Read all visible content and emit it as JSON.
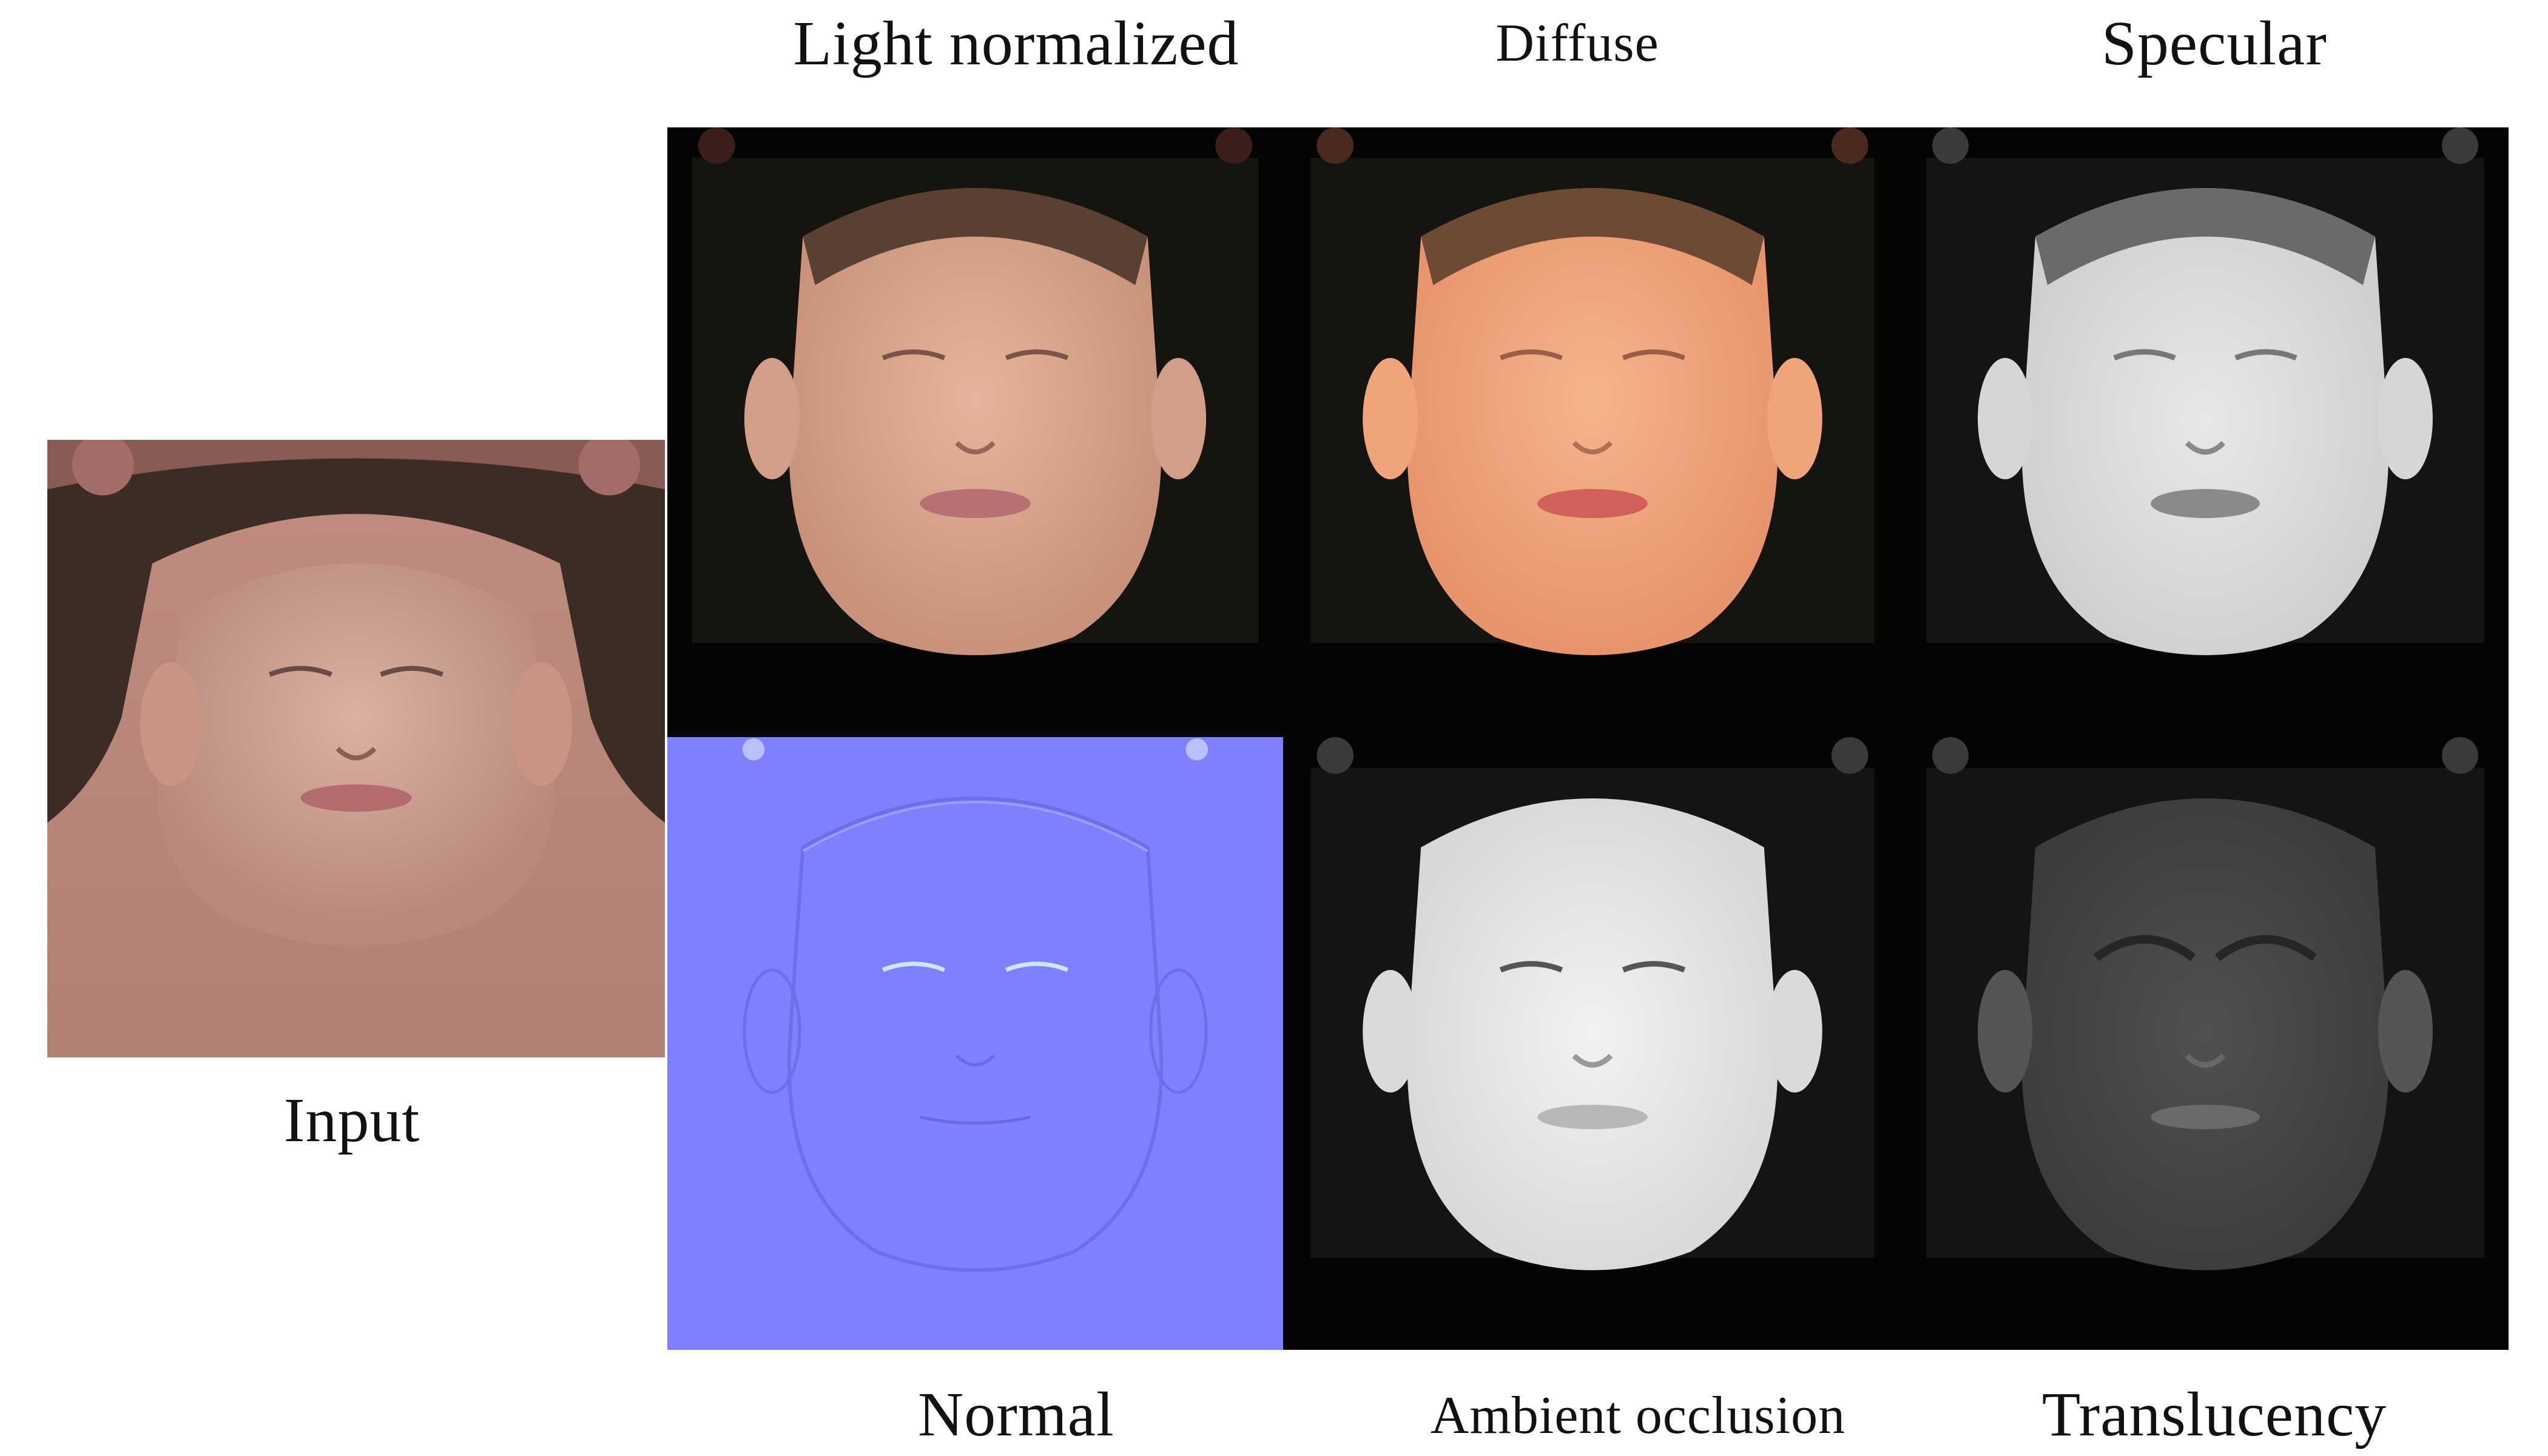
{
  "labels": {
    "input": "Input",
    "light_normalized": "Light normalized",
    "diffuse": "Diffuse",
    "specular": "Specular",
    "normal": "Normal",
    "ambient_occlusion": "Ambient occlusion",
    "translucency": "Translucency"
  },
  "colors": {
    "background": "#ffffff",
    "panel_dark": "#050403",
    "normal_map_blue": "#8080ff",
    "skin_input": "#c89a8c",
    "skin_light_normalized": "#d9a58c",
    "skin_diffuse": "#f0a57c",
    "hair": "#3b2c25"
  },
  "tiles": [
    {
      "name": "input",
      "kind": "uv-texture"
    },
    {
      "name": "light-normalized",
      "kind": "uv-texture"
    },
    {
      "name": "diffuse",
      "kind": "uv-texture"
    },
    {
      "name": "specular",
      "kind": "grayscale-map"
    },
    {
      "name": "normal",
      "kind": "normal-map"
    },
    {
      "name": "ambient-occlusion",
      "kind": "grayscale-map"
    },
    {
      "name": "translucency",
      "kind": "grayscale-map"
    }
  ]
}
